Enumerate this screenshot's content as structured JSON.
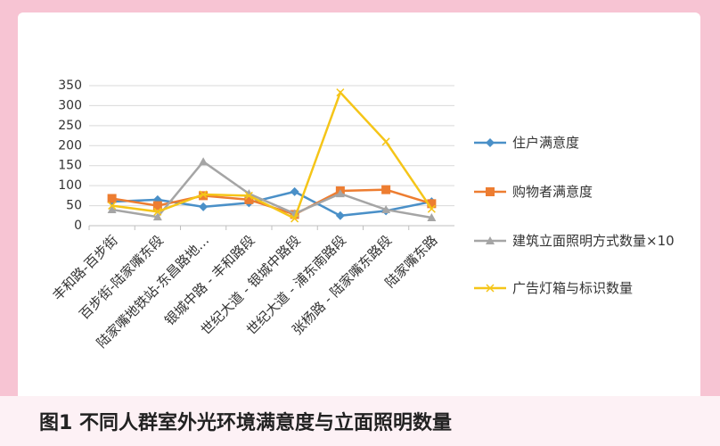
{
  "caption": "图1 不同人群室外光环境满意度与立面照明数量",
  "chart_data": {
    "type": "line",
    "categories": [
      "丰和路-百步街",
      "百步街-陆家嘴东段",
      "陆家嘴地铁站-东昌路地…",
      "银城中路 - 丰和路段",
      "世纪大道 - 银城中路段",
      "世纪大道 - 浦东南路段",
      "张杨路 - 陆家嘴东路段",
      "陆家嘴东路"
    ],
    "series": [
      {
        "name": "住户满意度",
        "color": "#4a90c8",
        "marker": "diamond",
        "values": [
          60,
          65,
          47,
          57,
          85,
          25,
          37,
          60
        ]
      },
      {
        "name": "购物者满意度",
        "color": "#ed7d31",
        "marker": "square",
        "values": [
          68,
          50,
          75,
          65,
          28,
          87,
          90,
          55
        ]
      },
      {
        "name": "建筑立面照明方式数量×10",
        "color": "#a5a5a5",
        "marker": "triangle",
        "values": [
          40,
          22,
          160,
          80,
          30,
          80,
          40,
          20
        ]
      },
      {
        "name": "广告灯箱与标识数量",
        "color": "#f5c518",
        "marker": "x",
        "values": [
          50,
          35,
          78,
          75,
          18,
          333,
          210,
          42
        ]
      }
    ],
    "ylim": [
      0,
      350
    ],
    "yticks": [
      0,
      50,
      100,
      150,
      200,
      250,
      300,
      350
    ],
    "grid": true,
    "legend": "right"
  }
}
